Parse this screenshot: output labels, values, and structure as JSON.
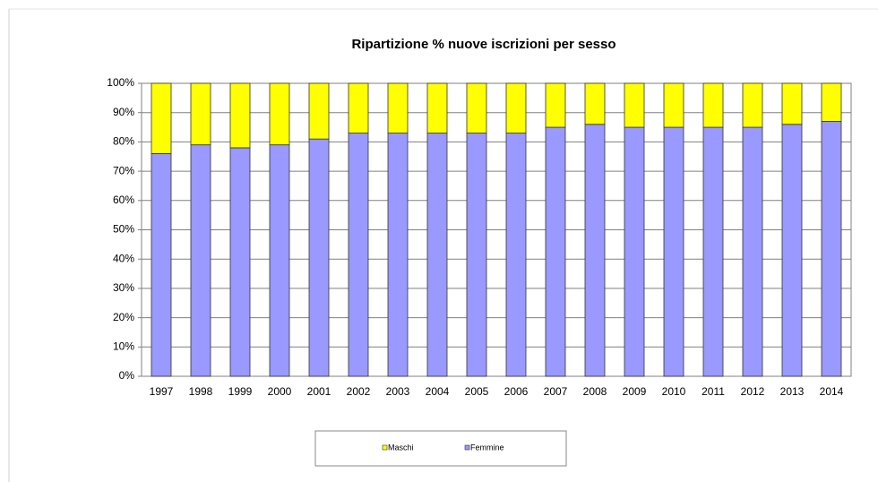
{
  "chart_data": {
    "type": "stacked_bar",
    "title": "Ripartizione % nuove iscrizioni per sesso",
    "categories": [
      "1997",
      "1998",
      "1999",
      "2000",
      "2001",
      "2002",
      "2003",
      "2004",
      "2005",
      "2006",
      "2007",
      "2008",
      "2009",
      "2010",
      "2011",
      "2012",
      "2013",
      "2014"
    ],
    "series": [
      {
        "name": "Femmine",
        "color": "#9999ff",
        "values": [
          76,
          79,
          78,
          79,
          81,
          83,
          83,
          83,
          83,
          83,
          85,
          86,
          85,
          85,
          85,
          85,
          86,
          87
        ]
      },
      {
        "name": "Maschi",
        "color": "#ffff00",
        "values": [
          24,
          21,
          22,
          21,
          19,
          17,
          17,
          17,
          17,
          17,
          15,
          14,
          15,
          15,
          15,
          15,
          14,
          13
        ]
      }
    ],
    "legend_order": [
      "Maschi",
      "Femmine"
    ],
    "ylim": [
      0,
      100
    ],
    "yticks": [
      {
        "value": 0,
        "label": "0%"
      },
      {
        "value": 10,
        "label": "10%"
      },
      {
        "value": 20,
        "label": "20%"
      },
      {
        "value": 30,
        "label": "30%"
      },
      {
        "value": 40,
        "label": "40%"
      },
      {
        "value": 50,
        "label": "50%"
      },
      {
        "value": 60,
        "label": "60%"
      },
      {
        "value": 70,
        "label": "70%"
      },
      {
        "value": 80,
        "label": "80%"
      },
      {
        "value": 90,
        "label": "90%"
      },
      {
        "value": 100,
        "label": "100%"
      }
    ],
    "grid": true,
    "legend": "bottom"
  }
}
